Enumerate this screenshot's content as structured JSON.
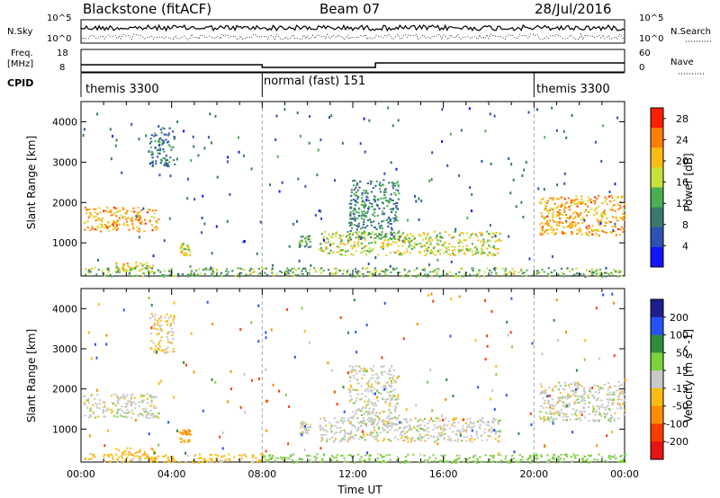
{
  "header": {
    "station": "Blackstone (fitACF)",
    "beam": "Beam 07",
    "date": "28/Jul/2016"
  },
  "nsky_panel": {
    "left_label": "N.Sky",
    "left_ticks": [
      "10^5",
      "10^0"
    ],
    "right_ticks": [
      "10^5",
      "10^0"
    ],
    "right_label": "N.Search",
    "right_legend_line": "dotted"
  },
  "freq_panel": {
    "left_label_line1": "Freq.",
    "left_label_line2": "[MHz]",
    "left_ticks": [
      "18",
      "8"
    ],
    "right_ticks": [
      "60",
      "0"
    ],
    "right_label": "Nave",
    "right_legend_line": "dotted"
  },
  "cpid": {
    "label": "CPID",
    "segments": [
      "themis 3300",
      "normal (fast) 151",
      "themis 3300"
    ],
    "segment_bounds_hours": [
      [
        0,
        8
      ],
      [
        8,
        20
      ],
      [
        20,
        24
      ]
    ]
  },
  "chart_data": [
    {
      "type": "heatmap",
      "name": "power",
      "ylabel": "Slant Range [km]",
      "xlim": [
        0,
        24
      ],
      "ylim": [
        180,
        4500
      ],
      "yticks": [
        1000,
        2000,
        3000,
        4000
      ],
      "colorbar_label": "Power [dB]",
      "colorbar_ticks": [
        4,
        8,
        12,
        16,
        20,
        24,
        28
      ],
      "colorbar_range": [
        0,
        30
      ],
      "colors": [
        "#1414ff",
        "#2d52b4",
        "#3a7a6e",
        "#4cae52",
        "#c8e03c",
        "#fabb14",
        "#ff7d00",
        "#ff1e00"
      ],
      "features": [
        {
          "t": [
            0.1,
            3.4
          ],
          "range": [
            1300,
            1900
          ],
          "value": 22
        },
        {
          "t": [
            0.1,
            8.0
          ],
          "range": [
            180,
            400
          ],
          "value": 14
        },
        {
          "t": [
            1.5,
            3.3
          ],
          "range": [
            300,
            550
          ],
          "value": 18
        },
        {
          "t": [
            4.3,
            4.8
          ],
          "range": [
            700,
            1000
          ],
          "value": 18
        },
        {
          "t": [
            3.0,
            4.1
          ],
          "range": [
            2900,
            3900
          ],
          "value": 9
        },
        {
          "t": [
            9.6,
            10.1
          ],
          "range": [
            900,
            1200
          ],
          "value": 12
        },
        {
          "t": [
            10.5,
            18.5
          ],
          "range": [
            700,
            1300
          ],
          "value": 17
        },
        {
          "t": [
            11.8,
            14.0
          ],
          "range": [
            1100,
            2600
          ],
          "value": 10
        },
        {
          "t": [
            8.0,
            24.0
          ],
          "range": [
            180,
            400
          ],
          "value": 14
        },
        {
          "t": [
            20.2,
            24.0
          ],
          "range": [
            1200,
            2200
          ],
          "value": 22
        }
      ]
    },
    {
      "type": "heatmap",
      "name": "velocity",
      "ylabel": "Slant Range [km]",
      "xlabel": "Time UT",
      "xlim": [
        0,
        24
      ],
      "ylim": [
        180,
        4500
      ],
      "yticks": [
        1000,
        2000,
        3000,
        4000
      ],
      "xticks": [
        "00:00",
        "04:00",
        "08:00",
        "12:00",
        "16:00",
        "20:00",
        "00:00"
      ],
      "colorbar_label": "Velocity [m s^-1]",
      "colorbar_ticks": [
        200,
        100,
        50,
        15,
        -15,
        -50,
        -100,
        -200
      ],
      "colors": [
        "#1e1e8c",
        "#2850ff",
        "#2f8a3c",
        "#7ad23c",
        "#c8c8c8",
        "#fabb14",
        "#ff8c00",
        "#ff3c00",
        "#e61414"
      ],
      "features": [
        {
          "t": [
            0.1,
            3.4
          ],
          "range": [
            1300,
            1900
          ],
          "value": 0
        },
        {
          "t": [
            0.1,
            8.0
          ],
          "range": [
            180,
            400
          ],
          "value": -30
        },
        {
          "t": [
            1.5,
            3.3
          ],
          "range": [
            300,
            550
          ],
          "value": -40
        },
        {
          "t": [
            4.3,
            4.8
          ],
          "range": [
            700,
            1000
          ],
          "value": -50
        },
        {
          "t": [
            3.0,
            4.1
          ],
          "range": [
            2900,
            3900
          ],
          "value": -20
        },
        {
          "t": [
            9.6,
            10.1
          ],
          "range": [
            900,
            1200
          ],
          "value": 0
        },
        {
          "t": [
            10.5,
            18.5
          ],
          "range": [
            700,
            1300
          ],
          "value": 0
        },
        {
          "t": [
            11.8,
            14.0
          ],
          "range": [
            1100,
            2600
          ],
          "value": 0
        },
        {
          "t": [
            8.0,
            24.0
          ],
          "range": [
            180,
            400
          ],
          "value": 30
        },
        {
          "t": [
            20.2,
            24.0
          ],
          "range": [
            1200,
            2200
          ],
          "value": 0
        }
      ]
    }
  ]
}
